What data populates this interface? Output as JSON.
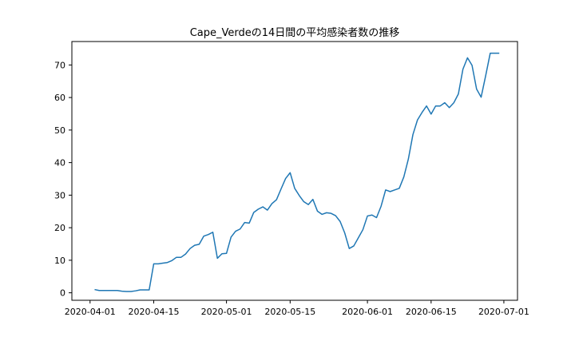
{
  "chart_data": {
    "type": "line",
    "title": "Cape_Verdeの14日間の平均感染者数の推移",
    "xlabel": "",
    "ylabel": "",
    "x_ticks": [
      "2020-04-01",
      "2020-04-15",
      "2020-05-01",
      "2020-05-15",
      "2020-06-01",
      "2020-06-15",
      "2020-07-01"
    ],
    "y_ticks": [
      0,
      10,
      20,
      30,
      40,
      50,
      60,
      70
    ],
    "xlim": [
      "2020-03-28",
      "2020-07-04"
    ],
    "ylim": [
      -2.3,
      77.2
    ],
    "grid": false,
    "legend": "none",
    "line_color": "#1f77b4",
    "series": [
      {
        "x": [
          "2020-04-02",
          "2020-04-03",
          "2020-04-04",
          "2020-04-05",
          "2020-04-06",
          "2020-04-07",
          "2020-04-08",
          "2020-04-09",
          "2020-04-10",
          "2020-04-11",
          "2020-04-12",
          "2020-04-13",
          "2020-04-14",
          "2020-04-15",
          "2020-04-16",
          "2020-04-17",
          "2020-04-18",
          "2020-04-19",
          "2020-04-20",
          "2020-04-21",
          "2020-04-22",
          "2020-04-23",
          "2020-04-24",
          "2020-04-25",
          "2020-04-26",
          "2020-04-27",
          "2020-04-28",
          "2020-04-29",
          "2020-04-30",
          "2020-05-01",
          "2020-05-02",
          "2020-05-03",
          "2020-05-04",
          "2020-05-05",
          "2020-05-06",
          "2020-05-07",
          "2020-05-08",
          "2020-05-09",
          "2020-05-10",
          "2020-05-11",
          "2020-05-12",
          "2020-05-13",
          "2020-05-14",
          "2020-05-15",
          "2020-05-16",
          "2020-05-17",
          "2020-05-18",
          "2020-05-19",
          "2020-05-20",
          "2020-05-21",
          "2020-05-22",
          "2020-05-23",
          "2020-05-24",
          "2020-05-25",
          "2020-05-26",
          "2020-05-27",
          "2020-05-28",
          "2020-05-29",
          "2020-05-30",
          "2020-05-31",
          "2020-06-01",
          "2020-06-02",
          "2020-06-03",
          "2020-06-04",
          "2020-06-05",
          "2020-06-06",
          "2020-06-07",
          "2020-06-08",
          "2020-06-09",
          "2020-06-10",
          "2020-06-11",
          "2020-06-12",
          "2020-06-13",
          "2020-06-14",
          "2020-06-15",
          "2020-06-16",
          "2020-06-17",
          "2020-06-18",
          "2020-06-19",
          "2020-06-20",
          "2020-06-21",
          "2020-06-22",
          "2020-06-23",
          "2020-06-24",
          "2020-06-25",
          "2020-06-26",
          "2020-06-27",
          "2020-06-28",
          "2020-06-29",
          "2020-06-30"
        ],
        "values": [
          1.0,
          0.7,
          0.7,
          0.7,
          0.7,
          0.7,
          0.5,
          0.4,
          0.4,
          0.6,
          0.9,
          0.9,
          0.9,
          8.9,
          8.9,
          9.1,
          9.3,
          9.9,
          10.9,
          10.9,
          11.9,
          13.6,
          14.6,
          14.9,
          17.4,
          17.9,
          18.6,
          10.6,
          12.0,
          12.1,
          17.1,
          18.9,
          19.6,
          21.6,
          21.4,
          24.7,
          25.7,
          26.4,
          25.4,
          27.4,
          28.6,
          31.9,
          35.1,
          36.9,
          32.1,
          29.9,
          28.0,
          27.1,
          28.7,
          25.1,
          24.1,
          24.6,
          24.4,
          23.7,
          21.9,
          18.4,
          13.6,
          14.4,
          16.9,
          19.4,
          23.6,
          23.9,
          23.1,
          26.6,
          31.6,
          31.1,
          31.6,
          32.1,
          35.6,
          41.1,
          48.6,
          53.1,
          55.4,
          57.4,
          54.9,
          57.4,
          57.4,
          58.4,
          56.9,
          58.4,
          61.1,
          68.7,
          72.2,
          69.9,
          62.6,
          60.1,
          66.7,
          73.6,
          73.6,
          73.6
        ]
      }
    ]
  }
}
